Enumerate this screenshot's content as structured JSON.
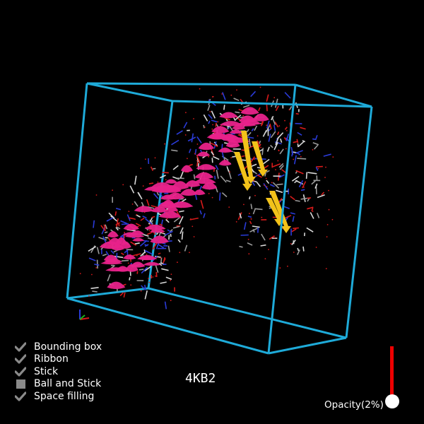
{
  "viewer": {
    "molecule_id": "4KB2",
    "bounding_box_color": "#1eaad8",
    "helix_color": "#e8228a",
    "sheet_color": "#f2c21a",
    "stick_colors": [
      "#9a9a9a",
      "#d8d8d8",
      "#2a3bd8",
      "#d81a1a"
    ]
  },
  "display_options": [
    {
      "label": "Bounding box",
      "checked": true,
      "icon": "checkmark-icon"
    },
    {
      "label": "Ribbon",
      "checked": true,
      "icon": "checkmark-icon"
    },
    {
      "label": "Stick",
      "checked": true,
      "icon": "checkmark-icon"
    },
    {
      "label": "Ball and Stick",
      "checked": false,
      "icon": "unchecked-square-icon"
    },
    {
      "label": "Space filling",
      "checked": true,
      "icon": "checkmark-icon"
    }
  ],
  "opacity": {
    "label": "Opacity(2%)",
    "value_percent": 2
  }
}
